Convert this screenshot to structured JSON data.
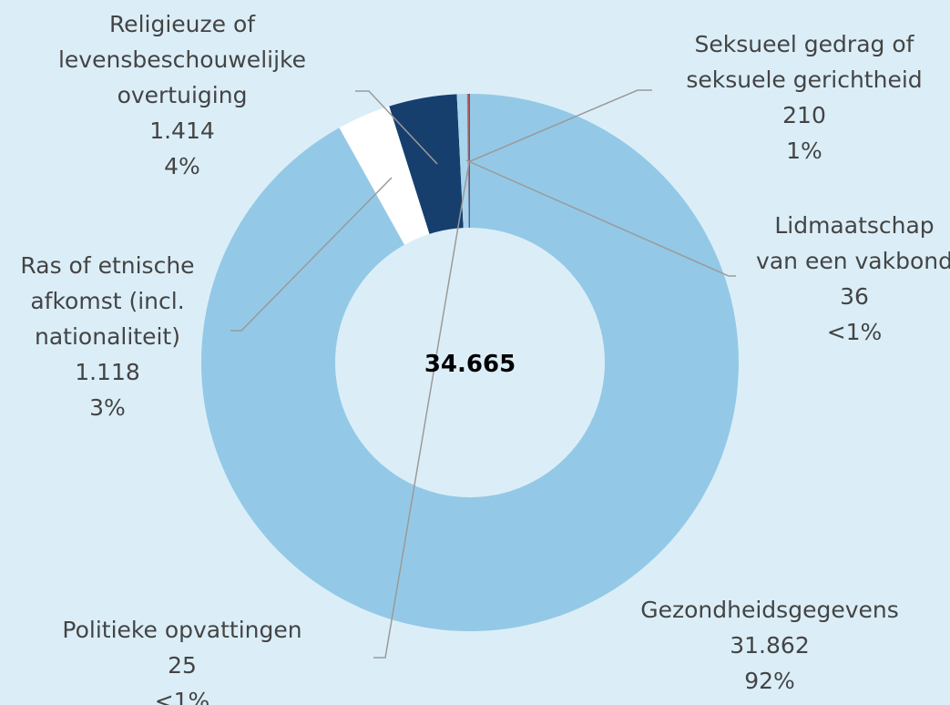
{
  "chart_data": {
    "type": "donut",
    "categories": [
      "Gezondheidsgegevens",
      "Ras of etnische afkomst (incl. nationaliteit)",
      "Religieuze of levensbeschouwelijke overtuiging",
      "Seksueel gedrag of seksuele gerichtheid",
      "Politieke opvattingen",
      "Lidmaatschap van een vakbond"
    ],
    "values": [
      31862,
      1118,
      1414,
      210,
      25,
      36
    ],
    "value_labels": [
      "31.862",
      "1.118",
      "1.414",
      "210",
      "25",
      "36"
    ],
    "percent_labels": [
      "92%",
      "3%",
      "4%",
      "1%",
      "<1%",
      "<1%"
    ],
    "colors": [
      "#93c9e6",
      "#ffffff",
      "#173f6e",
      "#a9d4ec",
      "#5b8fc0",
      "#c0392b"
    ],
    "total_label": "34.665"
  }
}
